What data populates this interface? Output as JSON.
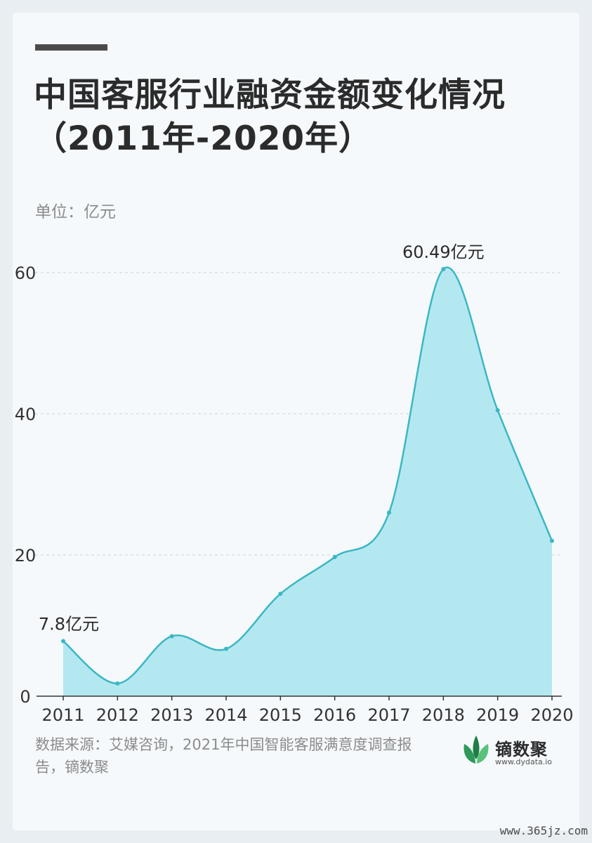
{
  "header": {
    "title": "中国客服行业融资金额变化情况（2011年-2020年）",
    "unit": "单位：亿元"
  },
  "footer": {
    "source": "数据来源：艾媒咨询，2021年中国智能客服满意度调查报告，镝数聚",
    "brand_name": "镝数聚",
    "brand_url": "www.dydata.io",
    "watermark": "www.365jz.com"
  },
  "colors": {
    "line": "#3bb7c4",
    "fill": "#ade6ee",
    "grid": "#c9d3d9",
    "axis": "#333333"
  },
  "chart_data": {
    "type": "area",
    "title": "中国客服行业融资金额变化情况（2011年-2020年）",
    "xlabel": "",
    "ylabel": "单位：亿元",
    "x": [
      "2011",
      "2012",
      "2013",
      "2014",
      "2015",
      "2016",
      "2017",
      "2018",
      "2019",
      "2020"
    ],
    "series": [
      {
        "values": [
          7.8,
          1.8,
          8.5,
          6.7,
          14.5,
          19.7,
          26.0,
          60.49,
          40.5,
          22.0
        ]
      }
    ],
    "yticks": [
      0,
      20,
      40,
      60
    ],
    "ylim": [
      0,
      60
    ],
    "grid": true,
    "annotations": [
      {
        "index": 0,
        "text": "7.8亿元"
      },
      {
        "index": 7,
        "text": "60.49亿元"
      }
    ]
  }
}
